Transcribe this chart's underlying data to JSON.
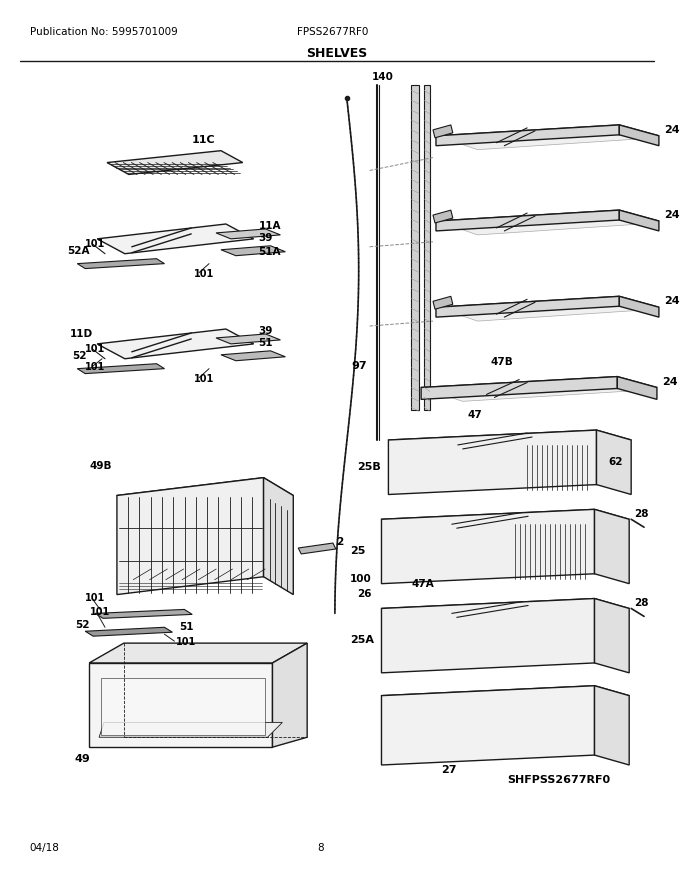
{
  "title": "SHELVES",
  "pub_no": "Publication No: 5995701009",
  "model": "FPSS2677RF0",
  "date": "04/18",
  "page": "8",
  "submodel": "SHFPSS2677RF0",
  "bg_color": "#ffffff",
  "line_color": "#1a1a1a",
  "text_color": "#000000",
  "fig_width": 6.8,
  "fig_height": 8.8,
  "dpi": 100
}
